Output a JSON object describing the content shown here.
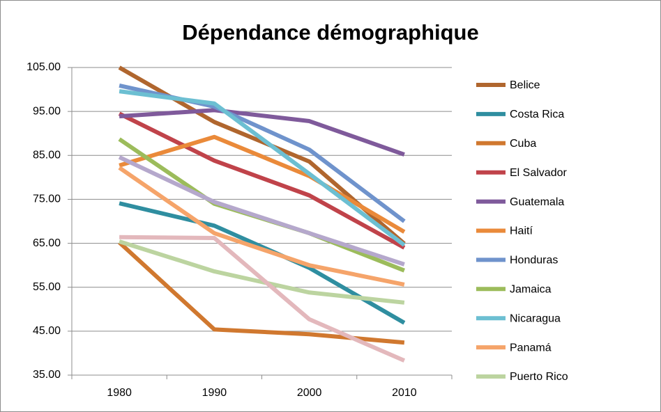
{
  "chart_data": {
    "type": "line",
    "title": "Dépendance démographique",
    "categories": [
      "1980",
      "1990",
      "2000",
      "2010"
    ],
    "ylim": [
      35,
      105
    ],
    "yticks": [
      {
        "value": 35,
        "label": "35.00"
      },
      {
        "value": 45,
        "label": "45.00"
      },
      {
        "value": 55,
        "label": "55.00"
      },
      {
        "value": 65,
        "label": "65.00"
      },
      {
        "value": 75,
        "label": "75.00"
      },
      {
        "value": 85,
        "label": "85.00"
      },
      {
        "value": 95,
        "label": "95.00"
      },
      {
        "value": 105,
        "label": "105.00"
      }
    ],
    "grid": true,
    "legend": "right",
    "series": [
      {
        "name": "Belice",
        "color": "#b0662e",
        "values": [
          105.0,
          92.6,
          83.6,
          64.9
        ]
      },
      {
        "name": "Costa Rica",
        "color": "#2f8ea0",
        "values": [
          74.1,
          69.0,
          59.4,
          46.9
        ]
      },
      {
        "name": "Cuba",
        "color": "#d0782f",
        "values": [
          65.2,
          45.4,
          44.3,
          42.4
        ]
      },
      {
        "name": "El Salvador",
        "color": "#c0434a",
        "values": [
          94.5,
          83.8,
          75.9,
          64.0
        ]
      },
      {
        "name": "Guatemala",
        "color": "#7f5a9b",
        "values": [
          93.9,
          95.3,
          92.8,
          85.2
        ]
      },
      {
        "name": "Haití",
        "color": "#ea8a3a",
        "values": [
          82.7,
          89.2,
          80.3,
          67.6
        ]
      },
      {
        "name": "Honduras",
        "color": "#6f93cc",
        "values": [
          100.9,
          96.1,
          86.3,
          70.0
        ]
      },
      {
        "name": "Jamaica",
        "color": "#9cbc5b",
        "values": [
          88.7,
          74.0,
          67.3,
          58.8
        ]
      },
      {
        "name": "Nicaragua",
        "color": "#6cbfd2",
        "values": [
          99.6,
          96.8,
          80.8,
          64.6
        ]
      },
      {
        "name": "Panamá",
        "color": "#f5a46a",
        "values": [
          82.2,
          67.3,
          60.0,
          55.6
        ]
      },
      {
        "name": "Puerto Rico",
        "color": "#bcd4a0",
        "values": [
          65.4,
          58.6,
          53.8,
          51.5
        ]
      },
      {
        "color": "#b5a8cc",
        "values": [
          84.6,
          74.4,
          67.3,
          60.2
        ]
      },
      {
        "color": "#e3b8bc",
        "values": [
          66.4,
          66.2,
          47.7,
          38.3
        ]
      }
    ]
  }
}
